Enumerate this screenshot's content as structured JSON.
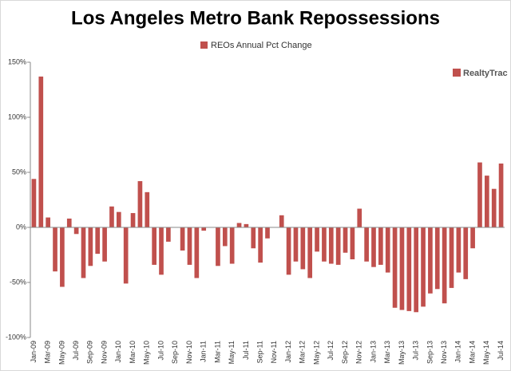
{
  "chart_data": {
    "type": "bar",
    "title": "Los Angeles Metro Bank Repossessions",
    "annotation": "RealtyTrac",
    "legend": "top",
    "grid": false,
    "categories": [
      "Jan-09",
      null,
      "Mar-09",
      null,
      "May-09",
      null,
      "Jul-09",
      null,
      "Sep-09",
      null,
      "Nov-09",
      null,
      "Jan-10",
      null,
      "Mar-10",
      null,
      "May-10",
      null,
      "Jul-10",
      null,
      "Sep-10",
      null,
      "Nov-10",
      null,
      "Jan-11",
      null,
      "Mar-11",
      null,
      "May-11",
      null,
      "Jul-11",
      null,
      "Sep-11",
      null,
      "Nov-11",
      null,
      "Jan-12",
      null,
      "Mar-12",
      null,
      "May-12",
      null,
      "Jul-12",
      null,
      "Sep-12",
      null,
      "Nov-12",
      null,
      "Jan-13",
      null,
      "Mar-13",
      null,
      "May-13",
      null,
      "Jul-13",
      null,
      "Sep-13",
      null,
      "Nov-13",
      null,
      "Jan-14",
      null,
      "Mar-14",
      null,
      "May-14",
      null,
      "Jul-14"
    ],
    "series": [
      {
        "name": "REOs Annual Pct Change",
        "color": "#c0504d",
        "values": [
          44,
          137,
          9,
          -40,
          -54,
          8,
          -6,
          -46,
          -35,
          -24,
          -31,
          19,
          14,
          -51,
          13,
          42,
          32,
          -34,
          -43,
          -13,
          0,
          -21,
          -34,
          -46,
          -3,
          0,
          -35,
          -17,
          -33,
          4,
          3,
          -19,
          -32,
          -10,
          0,
          11,
          -43,
          -31,
          -38,
          -46,
          -22,
          -31,
          -33,
          -34,
          -23,
          -29,
          17,
          -31,
          -36,
          -34,
          -41,
          -73,
          -75,
          -76,
          -77,
          -72,
          -60,
          -56,
          -69,
          -55,
          -41,
          -47,
          -19,
          59,
          47,
          35,
          58
        ]
      }
    ],
    "ylim": [
      -100,
      150
    ],
    "yticks": [
      {
        "value": -100,
        "label": "-100%"
      },
      {
        "value": -50,
        "label": "-50%"
      },
      {
        "value": 0,
        "label": "0%"
      },
      {
        "value": 50,
        "label": "50%"
      },
      {
        "value": 100,
        "label": "100%"
      },
      {
        "value": 150,
        "label": "150%"
      }
    ]
  }
}
